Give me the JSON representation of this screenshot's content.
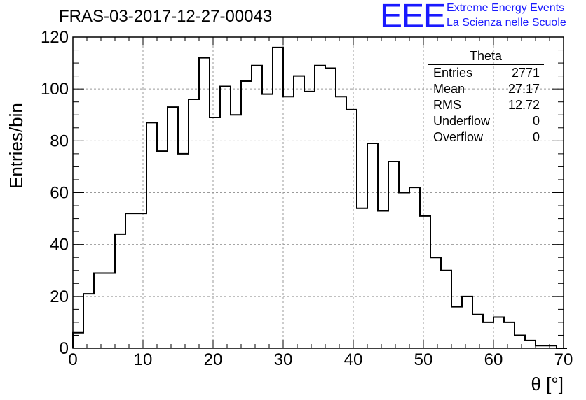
{
  "header": {
    "title": "FRAS-03-2017-12-27-00043",
    "logo_mark": "EEE",
    "logo_line1": "Extreme Energy Events",
    "logo_line2": "La Scienza nelle Scuole"
  },
  "stats": {
    "name": "Theta",
    "rows": [
      {
        "label": "Entries",
        "value": "2771"
      },
      {
        "label": "Mean",
        "value": "27.17"
      },
      {
        "label": "RMS",
        "value": "12.72"
      },
      {
        "label": "Underflow",
        "value": "0"
      },
      {
        "label": "Overflow",
        "value": "0"
      }
    ]
  },
  "chart_data": {
    "type": "bar",
    "style": "step-histogram",
    "xlabel": "θ [°]",
    "ylabel": "Entries/bin",
    "xlim": [
      0,
      70
    ],
    "ylim": [
      0,
      120
    ],
    "bin_width": 1.5,
    "x_ticks": [
      0,
      10,
      20,
      30,
      40,
      50,
      60,
      70
    ],
    "y_ticks": [
      0,
      20,
      40,
      60,
      80,
      100,
      120
    ],
    "grid": true,
    "line_color": "#000000",
    "bin_edges_start": 0,
    "values": [
      6,
      21,
      29,
      29,
      44,
      52,
      52,
      87,
      76,
      93,
      75,
      96,
      112,
      89,
      101,
      90,
      103,
      109,
      98,
      116,
      97,
      105,
      99,
      109,
      108,
      97,
      92,
      54,
      79,
      53,
      72,
      60,
      62,
      51,
      35,
      30,
      16,
      20,
      13,
      10,
      12,
      10,
      5,
      3,
      1,
      1,
      0
    ]
  }
}
